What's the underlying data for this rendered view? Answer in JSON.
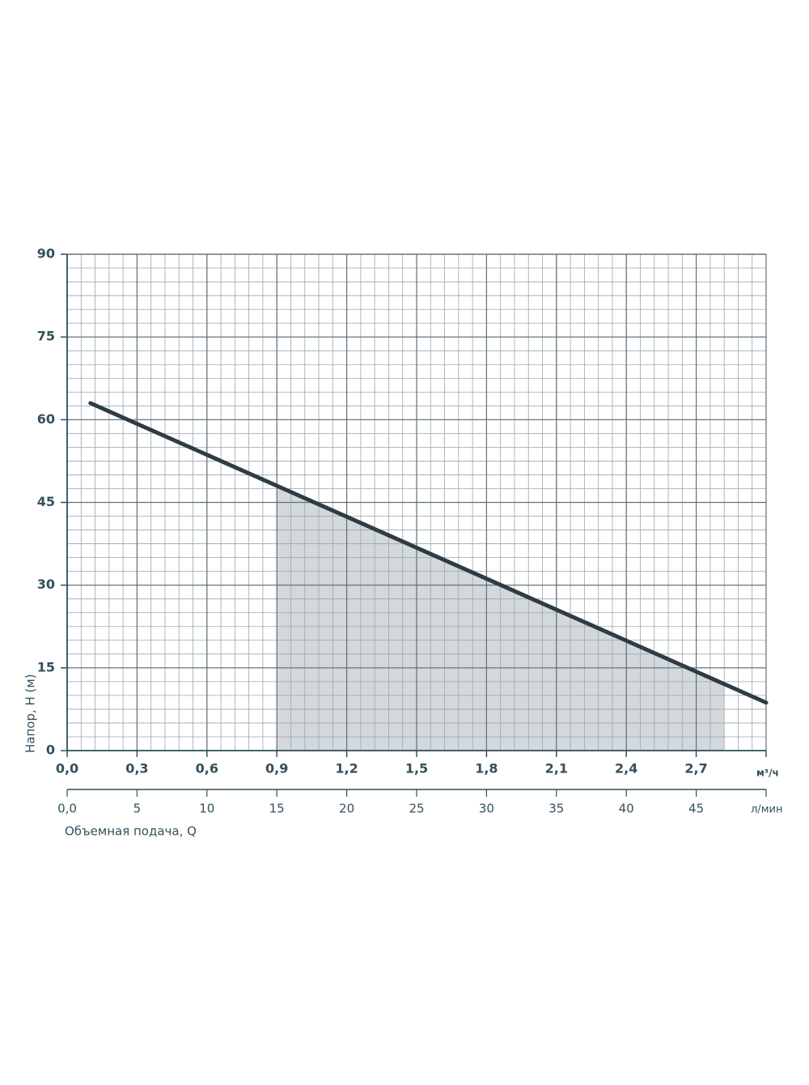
{
  "chart_data": {
    "type": "line",
    "y_label": "Напор, H (м)",
    "x_label": "Объемная подача, Q",
    "x_unit": "м³/ч",
    "x2_unit": "л/мин",
    "xlim": [
      0,
      3
    ],
    "xticks": [
      {
        "value": 0,
        "label": "0,0"
      },
      {
        "value": 0.3,
        "label": "0,3"
      },
      {
        "value": 0.6,
        "label": "0,6"
      },
      {
        "value": 0.9,
        "label": "0,9"
      },
      {
        "value": 1.2,
        "label": "1,2"
      },
      {
        "value": 1.5,
        "label": "1,5"
      },
      {
        "value": 1.8,
        "label": "1,8"
      },
      {
        "value": 2.1,
        "label": "2,1"
      },
      {
        "value": 2.4,
        "label": "2,4"
      },
      {
        "value": 2.7,
        "label": "2,7"
      }
    ],
    "x2lim": [
      0,
      50
    ],
    "x2ticks": [
      {
        "value": 0,
        "label": "0,0"
      },
      5,
      10,
      15,
      20,
      25,
      30,
      35,
      40,
      45
    ],
    "ylim": [
      0,
      90
    ],
    "yticks": [
      0,
      15,
      30,
      45,
      60,
      75,
      90
    ],
    "grid": true,
    "minor_grid": {
      "x": 5,
      "y": 6
    },
    "series": [
      {
        "color": "#2e3c44",
        "x": [
          0.1,
          3.0
        ],
        "values": [
          63,
          8.7
        ]
      }
    ],
    "shaded_region": {
      "x": [
        0.9,
        2.82
      ],
      "color": "#d3d8dc"
    }
  }
}
